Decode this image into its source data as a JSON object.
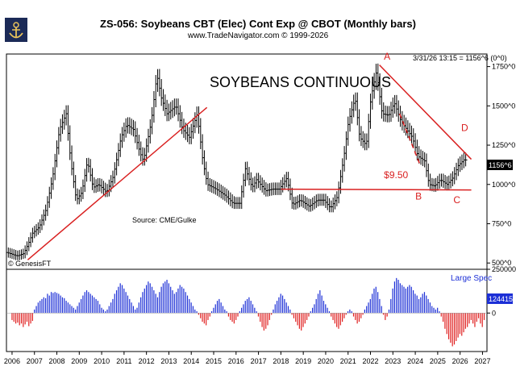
{
  "header": {
    "title": "ZS-056:  Soybeans CBT (Elec) Cont Exp @ CBOT  (Monthly bars)",
    "subtitle": "www.TradeNavigator.com © 1999-2026",
    "datestamp": "3/31/26 13:15 = 1156^6 (0^0)"
  },
  "chart_data": [
    {
      "type": "line",
      "title": "SOYBEANS CONTINUOUS",
      "source_note": "Source:  CME/Gulke",
      "watermark": "© GenesisFT",
      "x_ticks": [
        "2006",
        "2007",
        "2008",
        "2009",
        "2010",
        "2011",
        "2012",
        "2013",
        "2014",
        "2015",
        "2016",
        "2017",
        "2018",
        "2019",
        "2020",
        "2021",
        "2022",
        "2023",
        "2024",
        "2025",
        "2026",
        "2027"
      ],
      "y_ticks": [
        "500^0",
        "750^0",
        "1000^0",
        "1250^0",
        "1500^0",
        "1750^0"
      ],
      "ylim": [
        460,
        1830
      ],
      "last_price_label": "1156^6",
      "series_points": [
        [
          2005.75,
          570
        ],
        [
          2006.0,
          560
        ],
        [
          2006.3,
          545
        ],
        [
          2006.6,
          560
        ],
        [
          2006.8,
          620
        ],
        [
          2007.0,
          690
        ],
        [
          2007.3,
          730
        ],
        [
          2007.6,
          840
        ],
        [
          2007.9,
          1050
        ],
        [
          2008.2,
          1350
        ],
        [
          2008.5,
          1450
        ],
        [
          2008.7,
          1150
        ],
        [
          2008.95,
          900
        ],
        [
          2009.2,
          950
        ],
        [
          2009.45,
          1150
        ],
        [
          2009.7,
          980
        ],
        [
          2009.95,
          1000
        ],
        [
          2010.3,
          950
        ],
        [
          2010.6,
          1050
        ],
        [
          2010.95,
          1300
        ],
        [
          2011.2,
          1380
        ],
        [
          2011.5,
          1350
        ],
        [
          2011.8,
          1200
        ],
        [
          2011.95,
          1150
        ],
        [
          2012.3,
          1400
        ],
        [
          2012.55,
          1700
        ],
        [
          2012.75,
          1550
        ],
        [
          2013.0,
          1450
        ],
        [
          2013.4,
          1500
        ],
        [
          2013.7,
          1350
        ],
        [
          2014.0,
          1300
        ],
        [
          2014.35,
          1450
        ],
        [
          2014.6,
          1150
        ],
        [
          2014.8,
          1000
        ],
        [
          2015.2,
          970
        ],
        [
          2015.6,
          930
        ],
        [
          2015.95,
          880
        ],
        [
          2016.25,
          880
        ],
        [
          2016.5,
          1100
        ],
        [
          2016.8,
          980
        ],
        [
          2017.0,
          1030
        ],
        [
          2017.4,
          960
        ],
        [
          2017.7,
          970
        ],
        [
          2018.0,
          970
        ],
        [
          2018.35,
          1040
        ],
        [
          2018.6,
          870
        ],
        [
          2018.95,
          900
        ],
        [
          2019.35,
          860
        ],
        [
          2019.7,
          900
        ],
        [
          2020.0,
          900
        ],
        [
          2020.3,
          850
        ],
        [
          2020.6,
          920
        ],
        [
          2020.9,
          1180
        ],
        [
          2021.1,
          1400
        ],
        [
          2021.4,
          1550
        ],
        [
          2021.6,
          1300
        ],
        [
          2021.9,
          1250
        ],
        [
          2022.1,
          1550
        ],
        [
          2022.35,
          1720
        ],
        [
          2022.6,
          1450
        ],
        [
          2022.9,
          1440
        ],
        [
          2023.15,
          1520
        ],
        [
          2023.45,
          1400
        ],
        [
          2023.7,
          1350
        ],
        [
          2023.95,
          1300
        ],
        [
          2024.2,
          1180
        ],
        [
          2024.5,
          1150
        ],
        [
          2024.7,
          1000
        ],
        [
          2024.95,
          990
        ],
        [
          2025.2,
          1030
        ],
        [
          2025.5,
          1000
        ],
        [
          2025.75,
          1040
        ],
        [
          2026.0,
          1120
        ],
        [
          2026.25,
          1156
        ]
      ],
      "annotations": [
        {
          "text": "A",
          "x": 2022.6,
          "y": 1795
        },
        {
          "text": "B",
          "x": 2024.0,
          "y": 905
        },
        {
          "text": "C",
          "x": 2025.7,
          "y": 880
        },
        {
          "text": "D",
          "x": 2026.05,
          "y": 1340
        },
        {
          "text": "$9.50",
          "x": 2022.6,
          "y": 1040
        }
      ],
      "trendlines": [
        {
          "from": [
            2006.7,
            520
          ],
          "to": [
            2014.7,
            1490
          ]
        },
        {
          "from": [
            2018.0,
            970
          ],
          "to": [
            2026.5,
            965
          ]
        },
        {
          "from": [
            2022.4,
            1760
          ],
          "to": [
            2026.5,
            1160
          ]
        },
        {
          "from": [
            2023.3,
            1450
          ],
          "to": [
            2024.2,
            1130
          ]
        }
      ]
    },
    {
      "type": "bar",
      "series_name": "Large Spec",
      "y_ticks": [
        "250000",
        "0"
      ],
      "ylim": [
        -220000,
        250000
      ],
      "last_value_label": "124415",
      "positive_color": "#1c2fd6",
      "negative_color": "#e02020",
      "x_start": 2006.0,
      "x_step": 0.0833,
      "values": [
        -40000,
        -50000,
        -60000,
        -55000,
        -70000,
        -60000,
        -80000,
        -65000,
        -50000,
        -75000,
        -60000,
        -45000,
        20000,
        40000,
        60000,
        70000,
        80000,
        90000,
        85000,
        110000,
        100000,
        120000,
        115000,
        120000,
        115000,
        110000,
        100000,
        90000,
        85000,
        70000,
        60000,
        50000,
        40000,
        30000,
        20000,
        40000,
        60000,
        80000,
        100000,
        120000,
        130000,
        120000,
        110000,
        100000,
        90000,
        80000,
        70000,
        50000,
        30000,
        20000,
        10000,
        20000,
        40000,
        60000,
        80000,
        110000,
        130000,
        150000,
        170000,
        160000,
        140000,
        120000,
        100000,
        80000,
        60000,
        40000,
        20000,
        30000,
        60000,
        90000,
        120000,
        140000,
        160000,
        180000,
        170000,
        150000,
        130000,
        110000,
        90000,
        120000,
        150000,
        170000,
        180000,
        190000,
        170000,
        150000,
        130000,
        110000,
        120000,
        140000,
        160000,
        150000,
        140000,
        120000,
        100000,
        80000,
        60000,
        40000,
        20000,
        10000,
        -10000,
        -30000,
        -50000,
        -60000,
        -70000,
        -40000,
        -20000,
        10000,
        30000,
        50000,
        70000,
        80000,
        60000,
        40000,
        20000,
        10000,
        -20000,
        -40000,
        -50000,
        -60000,
        -40000,
        -20000,
        10000,
        30000,
        50000,
        70000,
        80000,
        90000,
        70000,
        50000,
        30000,
        10000,
        -20000,
        -50000,
        -80000,
        -100000,
        -90000,
        -70000,
        -40000,
        -10000,
        20000,
        50000,
        70000,
        90000,
        110000,
        100000,
        80000,
        60000,
        40000,
        20000,
        -10000,
        -30000,
        -50000,
        -70000,
        -90000,
        -100000,
        -80000,
        -60000,
        -40000,
        -20000,
        10000,
        30000,
        50000,
        80000,
        110000,
        130000,
        100000,
        70000,
        50000,
        30000,
        10000,
        -20000,
        -40000,
        -60000,
        -80000,
        -90000,
        -70000,
        -50000,
        -30000,
        -10000,
        10000,
        20000,
        10000,
        -20000,
        -40000,
        -60000,
        -50000,
        -30000,
        -10000,
        20000,
        40000,
        60000,
        80000,
        110000,
        140000,
        150000,
        120000,
        80000,
        40000,
        -10000,
        -40000,
        -20000,
        20000,
        80000,
        140000,
        180000,
        200000,
        190000,
        170000,
        160000,
        150000,
        140000,
        150000,
        160000,
        150000,
        130000,
        110000,
        100000,
        80000,
        90000,
        110000,
        120000,
        100000,
        80000,
        60000,
        40000,
        30000,
        20000,
        30000,
        10000,
        -20000,
        -50000,
        -90000,
        -120000,
        -150000,
        -170000,
        -190000,
        -180000,
        -160000,
        -140000,
        -120000,
        -130000,
        -110000,
        -90000,
        -80000,
        -60000,
        -40000,
        -60000,
        -80000,
        -50000,
        -30000,
        -60000,
        -80000,
        -40000,
        -20000,
        10000,
        120000,
        150000,
        124415
      ]
    }
  ]
}
